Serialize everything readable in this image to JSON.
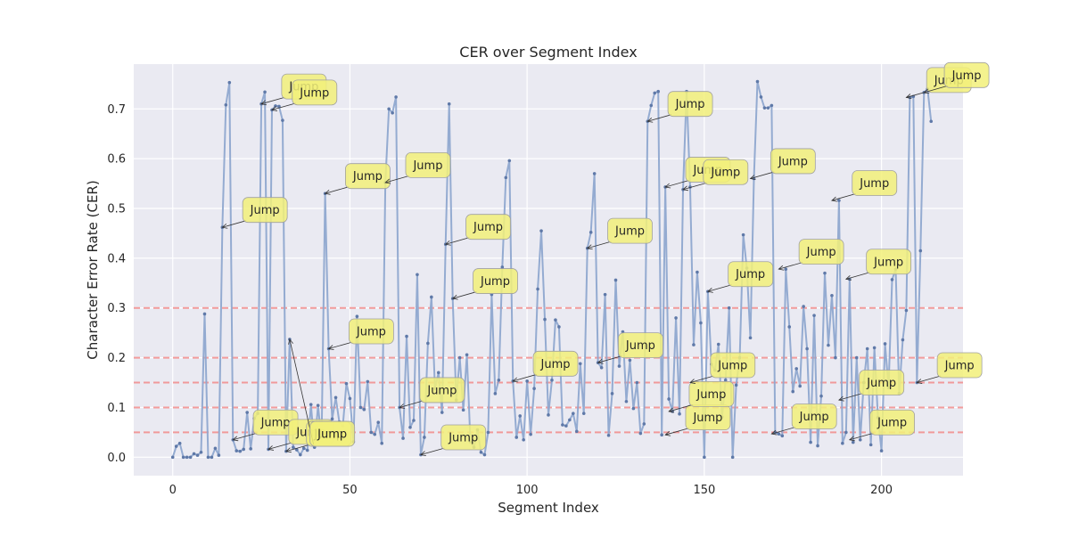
{
  "chart_data": {
    "type": "line",
    "title": "CER over Segment Index",
    "xlabel": "Segment Index",
    "ylabel": "Character Error Rate (CER)",
    "xlim": [
      -11,
      223
    ],
    "ylim": [
      -0.037,
      0.79
    ],
    "xticks": [
      "0",
      "50",
      "100",
      "150",
      "200"
    ],
    "yticks": [
      "0.0",
      "0.1",
      "0.2",
      "0.3",
      "0.4",
      "0.5",
      "0.6",
      "0.7"
    ],
    "grid": true,
    "colors": {
      "line": "#8fa8cf",
      "marker": "#5f79a8",
      "threshold": "#f28b8b",
      "background": "#eaeaf2",
      "annotation_fill": "#f2f07a",
      "annotation_edge": "#a0a0a0"
    },
    "thresholds": [
      0.05,
      0.1,
      0.15,
      0.2,
      0.3
    ],
    "series": [
      {
        "values": [
          0.0,
          0.022,
          0.028,
          0.0,
          0.0,
          0.0,
          0.007,
          0.004,
          0.01,
          0.288,
          0.0,
          0.0,
          0.018,
          0.004,
          0.462,
          0.708,
          0.753,
          0.035,
          0.013,
          0.012,
          0.016,
          0.09,
          0.017,
          0.078,
          0.088,
          0.71,
          0.734,
          0.016,
          0.698,
          0.706,
          0.705,
          0.677,
          0.012,
          0.237,
          0.02,
          0.015,
          0.005,
          0.018,
          0.014,
          0.106,
          0.02,
          0.104,
          0.034,
          0.53,
          0.218,
          0.077,
          0.12,
          0.071,
          0.063,
          0.148,
          0.118,
          0.031,
          0.283,
          0.1,
          0.096,
          0.152,
          0.05,
          0.046,
          0.07,
          0.028,
          0.552,
          0.7,
          0.692,
          0.724,
          0.1,
          0.038,
          0.243,
          0.06,
          0.074,
          0.367,
          0.005,
          0.04,
          0.229,
          0.322,
          0.138,
          0.17,
          0.09,
          0.428,
          0.71,
          0.319,
          0.115,
          0.2,
          0.095,
          0.206,
          0.031,
          0.02,
          0.055,
          0.01,
          0.005,
          0.05,
          0.327,
          0.128,
          0.155,
          0.382,
          0.562,
          0.596,
          0.153,
          0.04,
          0.083,
          0.035,
          0.153,
          0.046,
          0.138,
          0.338,
          0.455,
          0.277,
          0.085,
          0.155,
          0.276,
          0.262,
          0.065,
          0.063,
          0.075,
          0.088,
          0.052,
          0.188,
          0.088,
          0.42,
          0.452,
          0.57,
          0.19,
          0.18,
          0.327,
          0.044,
          0.128,
          0.356,
          0.183,
          0.252,
          0.112,
          0.195,
          0.098,
          0.15,
          0.048,
          0.067,
          0.675,
          0.707,
          0.732,
          0.735,
          0.045,
          0.543,
          0.117,
          0.092,
          0.28,
          0.087,
          0.538,
          0.735,
          0.543,
          0.226,
          0.372,
          0.27,
          0.0,
          0.333,
          0.187,
          0.175,
          0.227,
          0.081,
          0.155,
          0.3,
          0.0,
          0.145,
          0.2,
          0.447,
          0.38,
          0.24,
          0.56,
          0.755,
          0.724,
          0.702,
          0.702,
          0.707,
          0.05,
          0.047,
          0.043,
          0.378,
          0.262,
          0.132,
          0.178,
          0.143,
          0.303,
          0.218,
          0.03,
          0.285,
          0.023,
          0.123,
          0.37,
          0.225,
          0.325,
          0.2,
          0.516,
          0.028,
          0.05,
          0.358,
          0.03,
          0.2,
          0.035,
          0.15,
          0.218,
          0.025,
          0.22,
          0.08,
          0.013,
          0.228,
          0.14,
          0.357,
          0.378,
          0.128,
          0.236,
          0.295,
          0.723,
          0.725,
          0.15,
          0.415,
          0.733,
          0.74,
          0.675
        ]
      }
    ],
    "annotations": [
      {
        "text": "Jump",
        "x": 14,
        "y": 0.462,
        "tx": 22,
        "ty": 0.497
      },
      {
        "text": "Jump",
        "x": 17,
        "y": 0.035,
        "tx": 25,
        "ty": 0.07
      },
      {
        "text": "Jump",
        "x": 25,
        "y": 0.71,
        "tx": 33,
        "ty": 0.745
      },
      {
        "text": "Jump",
        "x": 27,
        "y": 0.016,
        "tx": 35,
        "ty": 0.051
      },
      {
        "text": "Jump",
        "x": 28,
        "y": 0.698,
        "tx": 36,
        "ty": 0.733
      },
      {
        "text": "Jump",
        "x": 32,
        "y": 0.012,
        "tx": 40,
        "ty": 0.047
      },
      {
        "text": "Jump",
        "x": 33,
        "y": 0.237,
        "tx": 41,
        "ty": 0.047
      },
      {
        "text": "Jump",
        "x": 43,
        "y": 0.53,
        "tx": 51,
        "ty": 0.565
      },
      {
        "text": "Jump",
        "x": 44,
        "y": 0.218,
        "tx": 52,
        "ty": 0.253
      },
      {
        "text": "Jump",
        "x": 60,
        "y": 0.552,
        "tx": 68,
        "ty": 0.587
      },
      {
        "text": "Jump",
        "x": 64,
        "y": 0.1,
        "tx": 72,
        "ty": 0.135
      },
      {
        "text": "Jump",
        "x": 70,
        "y": 0.005,
        "tx": 78,
        "ty": 0.04
      },
      {
        "text": "Jump",
        "x": 77,
        "y": 0.428,
        "tx": 85,
        "ty": 0.463
      },
      {
        "text": "Jump",
        "x": 79,
        "y": 0.319,
        "tx": 87,
        "ty": 0.354
      },
      {
        "text": "Jump",
        "x": 96,
        "y": 0.153,
        "tx": 104,
        "ty": 0.188
      },
      {
        "text": "Jump",
        "x": 117,
        "y": 0.42,
        "tx": 125,
        "ty": 0.455
      },
      {
        "text": "Jump",
        "x": 120,
        "y": 0.19,
        "tx": 128,
        "ty": 0.225
      },
      {
        "text": "Jump",
        "x": 134,
        "y": 0.675,
        "tx": 142,
        "ty": 0.71
      },
      {
        "text": "Jump",
        "x": 139,
        "y": 0.045,
        "tx": 147,
        "ty": 0.08
      },
      {
        "text": "Jump",
        "x": 139,
        "y": 0.543,
        "tx": 147,
        "ty": 0.578
      },
      {
        "text": "Jump",
        "x": 140,
        "y": 0.092,
        "tx": 148,
        "ty": 0.127
      },
      {
        "text": "Jump",
        "x": 144,
        "y": 0.538,
        "tx": 152,
        "ty": 0.573
      },
      {
        "text": "Jump",
        "x": 146,
        "y": 0.15,
        "tx": 154,
        "ty": 0.185
      },
      {
        "text": "Jump",
        "x": 151,
        "y": 0.333,
        "tx": 159,
        "ty": 0.368
      },
      {
        "text": "Jump",
        "x": 163,
        "y": 0.56,
        "tx": 171,
        "ty": 0.595
      },
      {
        "text": "Jump",
        "x": 169,
        "y": 0.047,
        "tx": 177,
        "ty": 0.082
      },
      {
        "text": "Jump",
        "x": 171,
        "y": 0.378,
        "tx": 179,
        "ty": 0.413
      },
      {
        "text": "Jump",
        "x": 186,
        "y": 0.516,
        "tx": 194,
        "ty": 0.551
      },
      {
        "text": "Jump",
        "x": 188,
        "y": 0.115,
        "tx": 196,
        "ty": 0.15
      },
      {
        "text": "Jump",
        "x": 190,
        "y": 0.358,
        "tx": 198,
        "ty": 0.393
      },
      {
        "text": "Jump",
        "x": 191,
        "y": 0.035,
        "tx": 199,
        "ty": 0.07
      },
      {
        "text": "Jump",
        "x": 207,
        "y": 0.723,
        "tx": 215,
        "ty": 0.758
      },
      {
        "text": "Jump",
        "x": 210,
        "y": 0.15,
        "tx": 218,
        "ty": 0.185
      },
      {
        "text": "Jump",
        "x": 212,
        "y": 0.733,
        "tx": 220,
        "ty": 0.768
      }
    ]
  }
}
